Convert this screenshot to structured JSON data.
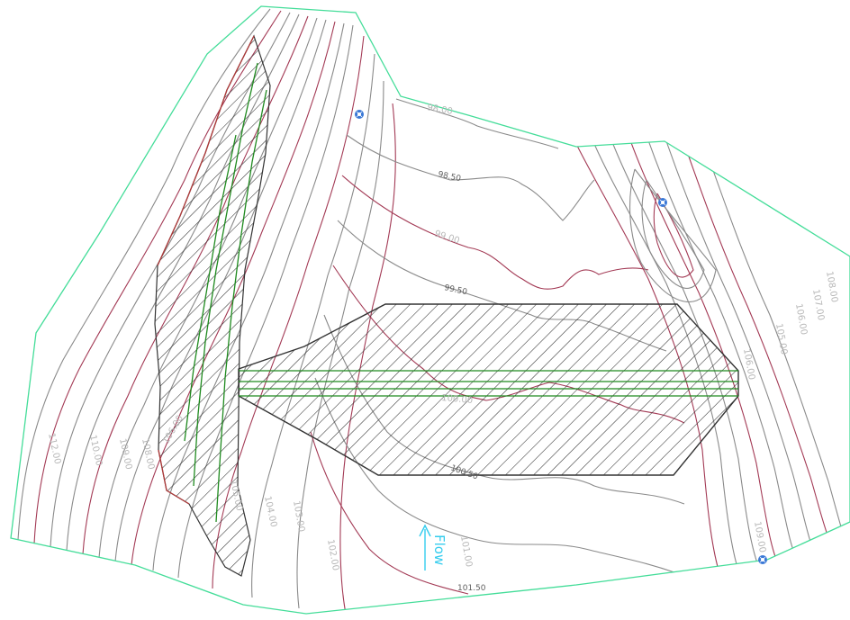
{
  "colors": {
    "boundary": "#44dd99",
    "contour_major": "#a33a55",
    "contour_minor": "#8a8a8a",
    "hatch": "#333333",
    "pipe": "#1f8a1f",
    "marker": "#3a78d6",
    "flow": "#33ccee"
  },
  "map": {
    "flow_label": "Flow",
    "markers": [
      {
        "name": "marker-north",
        "icon": "survey-point-icon"
      },
      {
        "name": "marker-east",
        "icon": "survey-point-icon"
      },
      {
        "name": "marker-southeast",
        "icon": "survey-point-icon"
      }
    ],
    "contour_labels": [
      {
        "text": "98.00"
      },
      {
        "text": "98.50"
      },
      {
        "text": "99.00"
      },
      {
        "text": "99.50"
      },
      {
        "text": "100.00"
      },
      {
        "text": "100.50"
      },
      {
        "text": "101.00"
      },
      {
        "text": "101.50"
      },
      {
        "text": "102.00"
      },
      {
        "text": "103.00"
      },
      {
        "text": "104.00"
      },
      {
        "text": "105.00"
      },
      {
        "text": "106.00"
      },
      {
        "text": "108.00"
      },
      {
        "text": "109.00"
      },
      {
        "text": "110.00"
      },
      {
        "text": "112.00"
      },
      {
        "text": "106.00"
      },
      {
        "text": "105.00"
      },
      {
        "text": "106.00"
      },
      {
        "text": "107.00"
      },
      {
        "text": "108.00"
      },
      {
        "text": "109.00"
      }
    ]
  }
}
